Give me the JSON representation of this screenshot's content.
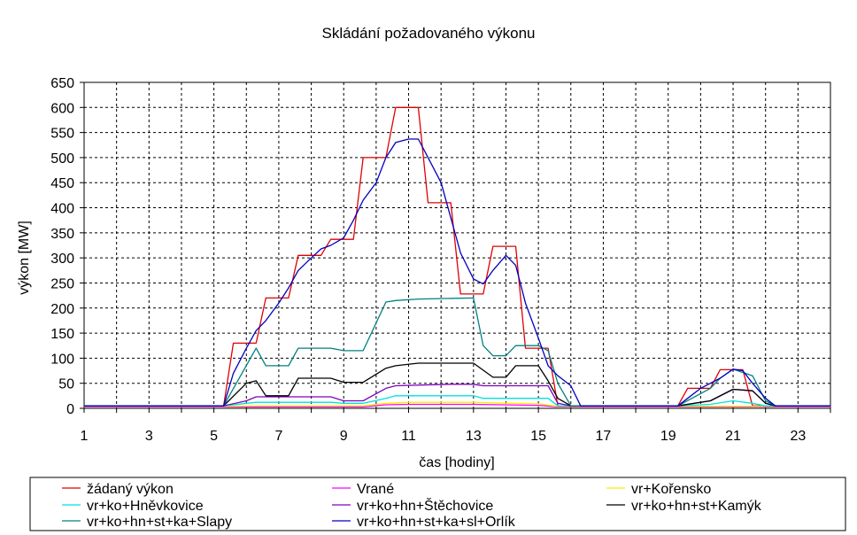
{
  "chart_data": {
    "type": "line",
    "title": "Skládání požadovaného výkonu",
    "xlabel": "čas [hodiny]",
    "ylabel": "výkon [MW]",
    "xlim": [
      1,
      24
    ],
    "ylim": [
      0,
      650
    ],
    "x_ticks": [
      1,
      3,
      5,
      7,
      9,
      11,
      13,
      15,
      17,
      19,
      21,
      23
    ],
    "y_ticks": [
      0,
      50,
      100,
      150,
      200,
      250,
      300,
      350,
      400,
      450,
      500,
      550,
      600,
      650
    ],
    "grid": true,
    "legend_position": "bottom",
    "series": [
      {
        "name": "žádaný výkon",
        "color": "#e00000",
        "points": [
          [
            1,
            5
          ],
          [
            5.3,
            5
          ],
          [
            5.6,
            130
          ],
          [
            6.3,
            130
          ],
          [
            6.6,
            220
          ],
          [
            7.3,
            220
          ],
          [
            7.6,
            305
          ],
          [
            8.3,
            305
          ],
          [
            8.6,
            337
          ],
          [
            9.3,
            337
          ],
          [
            9.6,
            500
          ],
          [
            10.3,
            500
          ],
          [
            10.6,
            600
          ],
          [
            11.3,
            600
          ],
          [
            11.6,
            410
          ],
          [
            12.3,
            410
          ],
          [
            12.6,
            228
          ],
          [
            13.3,
            228
          ],
          [
            13.6,
            323
          ],
          [
            14.3,
            323
          ],
          [
            14.6,
            120
          ],
          [
            15.3,
            120
          ],
          [
            15.6,
            5
          ],
          [
            19.3,
            5
          ],
          [
            19.6,
            40
          ],
          [
            20.3,
            40
          ],
          [
            20.6,
            77
          ],
          [
            21.3,
            77
          ],
          [
            21.6,
            5
          ],
          [
            24,
            5
          ]
        ]
      },
      {
        "name": "Vrané",
        "color": "#ff00ff",
        "points": [
          [
            1,
            3
          ],
          [
            5.3,
            3
          ],
          [
            6.3,
            3
          ],
          [
            9.6,
            3
          ],
          [
            10.3,
            7
          ],
          [
            11,
            8
          ],
          [
            13,
            8
          ],
          [
            15,
            6
          ],
          [
            15.6,
            3
          ],
          [
            24,
            3
          ]
        ]
      },
      {
        "name": "vr+Kořensko",
        "color": "#ffee00",
        "points": [
          [
            1,
            4
          ],
          [
            5.3,
            4
          ],
          [
            6.3,
            5
          ],
          [
            9.6,
            5
          ],
          [
            10.3,
            10
          ],
          [
            11,
            12
          ],
          [
            13,
            12
          ],
          [
            15,
            9
          ],
          [
            15.6,
            4
          ],
          [
            24,
            4
          ]
        ]
      },
      {
        "name": "vr+ko+Hněvkovice",
        "color": "#00e0e0",
        "points": [
          [
            1,
            5
          ],
          [
            5.3,
            5
          ],
          [
            6,
            10
          ],
          [
            6.3,
            12
          ],
          [
            8.6,
            12
          ],
          [
            9,
            10
          ],
          [
            9.6,
            10
          ],
          [
            10.3,
            20
          ],
          [
            10.6,
            25
          ],
          [
            13,
            25
          ],
          [
            13.3,
            20
          ],
          [
            15.3,
            20
          ],
          [
            15.6,
            5
          ],
          [
            19.3,
            5
          ],
          [
            20.3,
            8
          ],
          [
            21,
            15
          ],
          [
            21.6,
            10
          ],
          [
            22,
            5
          ],
          [
            24,
            5
          ]
        ]
      },
      {
        "name": "vr+ko+hn+Štěchovice",
        "color": "#8000c0",
        "points": [
          [
            1,
            5
          ],
          [
            5.3,
            5
          ],
          [
            6,
            15
          ],
          [
            6.3,
            23
          ],
          [
            8.6,
            23
          ],
          [
            9,
            15
          ],
          [
            9.6,
            15
          ],
          [
            10.3,
            40
          ],
          [
            10.6,
            45
          ],
          [
            12.3,
            48
          ],
          [
            13,
            48
          ],
          [
            13.3,
            45
          ],
          [
            15.3,
            45
          ],
          [
            15.6,
            10
          ],
          [
            16,
            5
          ],
          [
            19.3,
            5
          ],
          [
            20.3,
            15
          ],
          [
            21,
            38
          ],
          [
            21.6,
            35
          ],
          [
            22,
            10
          ],
          [
            22.3,
            5
          ],
          [
            24,
            5
          ]
        ]
      },
      {
        "name": "vr+ko+hn+st+Kamýk",
        "color": "#000000",
        "points": [
          [
            1,
            5
          ],
          [
            5.3,
            5
          ],
          [
            6,
            50
          ],
          [
            6.3,
            55
          ],
          [
            6.6,
            25
          ],
          [
            7.3,
            25
          ],
          [
            7.6,
            60
          ],
          [
            8.6,
            60
          ],
          [
            9,
            52
          ],
          [
            9.6,
            52
          ],
          [
            10.3,
            80
          ],
          [
            10.6,
            85
          ],
          [
            11.3,
            90
          ],
          [
            13,
            90
          ],
          [
            13.6,
            62
          ],
          [
            14,
            62
          ],
          [
            14.3,
            85
          ],
          [
            15,
            85
          ],
          [
            15.3,
            55
          ],
          [
            15.6,
            20
          ],
          [
            16,
            5
          ],
          [
            19.3,
            5
          ],
          [
            20.3,
            15
          ],
          [
            21,
            38
          ],
          [
            21.6,
            35
          ],
          [
            22,
            10
          ],
          [
            22.3,
            5
          ],
          [
            24,
            5
          ]
        ]
      },
      {
        "name": "vr+ko+hn+st+ka+Slapy",
        "color": "#008080",
        "points": [
          [
            1,
            5
          ],
          [
            5.3,
            5
          ],
          [
            6.3,
            120
          ],
          [
            6.6,
            85
          ],
          [
            7.3,
            85
          ],
          [
            7.6,
            120
          ],
          [
            8.6,
            120
          ],
          [
            9,
            115
          ],
          [
            9.6,
            115
          ],
          [
            10.3,
            212
          ],
          [
            10.6,
            215
          ],
          [
            11.3,
            218
          ],
          [
            13,
            220
          ],
          [
            13.3,
            125
          ],
          [
            13.6,
            105
          ],
          [
            14,
            105
          ],
          [
            14.3,
            125
          ],
          [
            15,
            125
          ],
          [
            15.3,
            115
          ],
          [
            15.6,
            50
          ],
          [
            16,
            5
          ],
          [
            19.3,
            5
          ],
          [
            20.3,
            40
          ],
          [
            20.6,
            60
          ],
          [
            21,
            78
          ],
          [
            21.6,
            65
          ],
          [
            22,
            15
          ],
          [
            22.3,
            5
          ],
          [
            24,
            5
          ]
        ]
      },
      {
        "name": "vr+ko+hn+st+ka+sl+Orlík",
        "color": "#0000c0",
        "points": [
          [
            1,
            5
          ],
          [
            5.3,
            5
          ],
          [
            5.6,
            70
          ],
          [
            6,
            120
          ],
          [
            6.3,
            155
          ],
          [
            6.6,
            175
          ],
          [
            7,
            210
          ],
          [
            7.3,
            240
          ],
          [
            7.6,
            275
          ],
          [
            8,
            300
          ],
          [
            8.3,
            318
          ],
          [
            8.6,
            325
          ],
          [
            9,
            340
          ],
          [
            9.3,
            375
          ],
          [
            9.6,
            415
          ],
          [
            10,
            450
          ],
          [
            10.3,
            500
          ],
          [
            10.6,
            530
          ],
          [
            11,
            537
          ],
          [
            11.3,
            537
          ],
          [
            11.6,
            500
          ],
          [
            12,
            450
          ],
          [
            12.3,
            380
          ],
          [
            12.6,
            310
          ],
          [
            13,
            258
          ],
          [
            13.3,
            248
          ],
          [
            13.6,
            275
          ],
          [
            14,
            305
          ],
          [
            14.3,
            285
          ],
          [
            14.6,
            210
          ],
          [
            15,
            140
          ],
          [
            15.3,
            85
          ],
          [
            15.6,
            65
          ],
          [
            16,
            45
          ],
          [
            16.3,
            5
          ],
          [
            19.3,
            5
          ],
          [
            19.6,
            20
          ],
          [
            20,
            40
          ],
          [
            20.3,
            50
          ],
          [
            20.6,
            60
          ],
          [
            21,
            78
          ],
          [
            21.3,
            75
          ],
          [
            21.6,
            50
          ],
          [
            22,
            20
          ],
          [
            22.3,
            5
          ],
          [
            24,
            5
          ]
        ]
      }
    ]
  }
}
